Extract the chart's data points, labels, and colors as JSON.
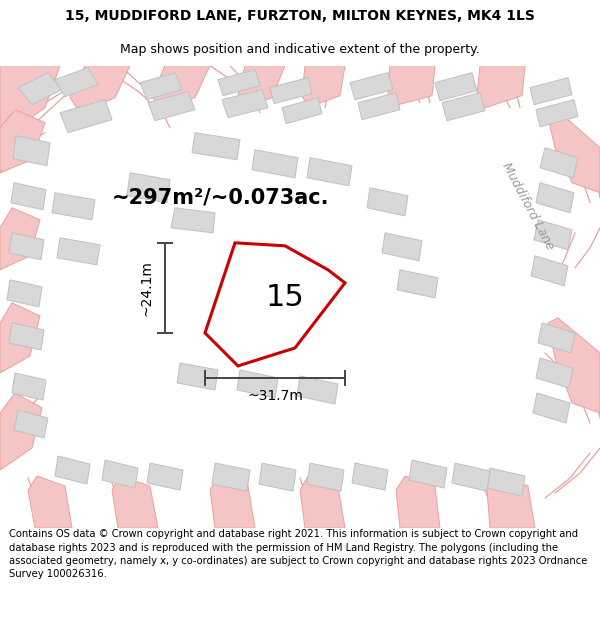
{
  "title_line1": "15, MUDDIFORD LANE, FURZTON, MILTON KEYNES, MK4 1LS",
  "title_line2": "Map shows position and indicative extent of the property.",
  "area_text": "~297m²/~0.073ac.",
  "label_15": "15",
  "dim_width": "~31.7m",
  "dim_height": "~24.1m",
  "street_label": "Muddiford Lane",
  "footer_text": "Contains OS data © Crown copyright and database right 2021. This information is subject to Crown copyright and database rights 2023 and is reproduced with the permission of HM Land Registry. The polygons (including the associated geometry, namely x, y co-ordinates) are subject to Crown copyright and database rights 2023 Ordnance Survey 100026316.",
  "bg_color": "#ffffff",
  "map_bg": "#efefef",
  "building_color": "#d8d8d8",
  "building_edge": "#c0c0c0",
  "road_color": "#f5c5c5",
  "road_edge": "#e8a0a0",
  "plot_color": "#cc0000",
  "dim_color": "#444444",
  "title_fontsize": 10,
  "subtitle_fontsize": 9,
  "area_fontsize": 15,
  "label_fontsize": 22,
  "dim_fontsize": 10,
  "street_fontsize": 9,
  "footer_fontsize": 7.2
}
